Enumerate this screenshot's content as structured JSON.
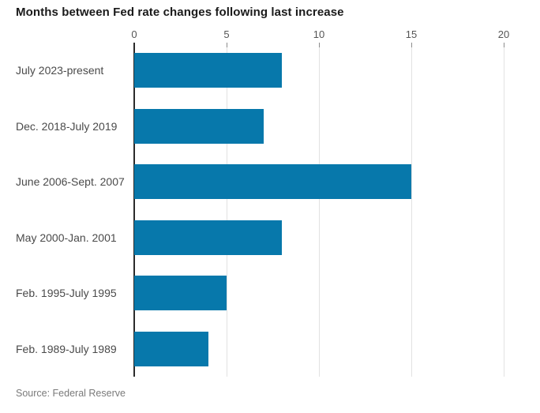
{
  "chart_data": {
    "type": "bar",
    "orientation": "horizontal",
    "title": "Months between Fed rate changes following last increase",
    "source": "Source: Federal Reserve",
    "categories": [
      "July 2023-present",
      "Dec. 2018-July 2019",
      "June 2006-Sept. 2007",
      "May 2000-Jan. 2001",
      "Feb. 1995-July 1995",
      "Feb. 1989-July 1989"
    ],
    "values": [
      8,
      7,
      15,
      8,
      5,
      4
    ],
    "x_ticks": [
      0,
      5,
      10,
      15,
      20
    ],
    "xlim": [
      0,
      20
    ],
    "grid": true,
    "legend": "none",
    "colors": {
      "bar": "#0778ab",
      "gridline": "#e2e2e2",
      "zero_axis": "#2b2b2b",
      "title_text": "#1a1a1a",
      "category_label": "#4a4a4a",
      "tick_label": "#555555",
      "source_text": "#7a7a7a",
      "background": "#ffffff"
    }
  }
}
